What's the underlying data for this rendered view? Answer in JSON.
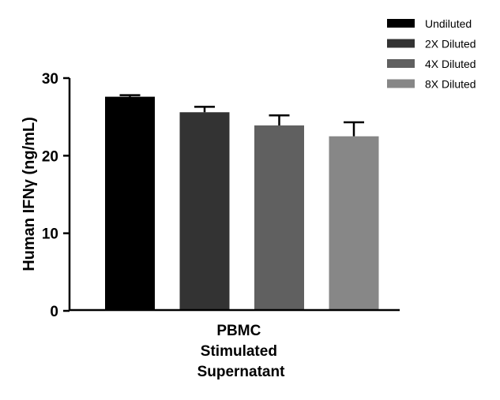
{
  "chart_data": {
    "type": "bar",
    "title": "",
    "xlabel": "",
    "ylabel": "Human IFNγ (ng/mL)",
    "ylim": [
      0,
      30
    ],
    "yticks": [
      0,
      10,
      20,
      30
    ],
    "category_lines": [
      "PBMC",
      "Stimulated",
      "Supernatant"
    ],
    "series": [
      {
        "name": "Undiluted",
        "value": 27.6,
        "error": 0.2,
        "color": "#000000"
      },
      {
        "name": "2X Diluted",
        "value": 25.6,
        "error": 0.7,
        "color": "#333333"
      },
      {
        "name": "4X Diluted",
        "value": 23.9,
        "error": 1.3,
        "color": "#606060"
      },
      {
        "name": "8X Diluted",
        "value": 22.5,
        "error": 1.8,
        "color": "#878787"
      }
    ],
    "legend_position": "top-right"
  }
}
